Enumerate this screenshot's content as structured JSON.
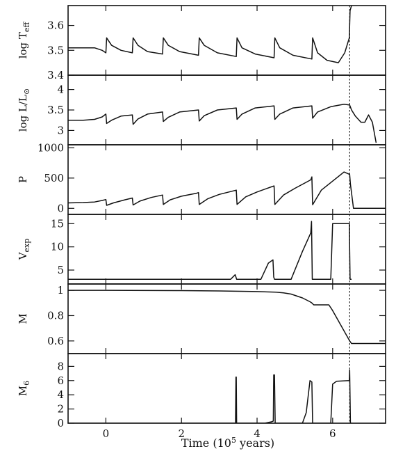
{
  "chart_data": {
    "type": "line",
    "x_range": [
      -1.0,
      7.4
    ],
    "xlabel": "Time (10",
    "xlabel_sup": "5",
    "xlabel_tail": " years)",
    "x_ticks": [
      0,
      2,
      4,
      6
    ],
    "x_tick_labels": [
      "0",
      "2",
      "4",
      "6"
    ],
    "vertical_dashed_line_x": 6.45,
    "panels": [
      {
        "id": "teff",
        "ylabel": "log T",
        "ylabel_sub": "eff",
        "ylim": [
          3.4,
          3.68
        ],
        "y_ticks": [
          3.4,
          3.5,
          3.6
        ],
        "y_tick_labels": [
          "3.4",
          "3.5",
          "3.6"
        ],
        "series": [
          {
            "x": [
              -1.0,
              -0.6,
              -0.3,
              -0.1,
              0.0,
              0.02,
              0.15,
              0.4,
              0.7,
              0.72,
              0.85,
              1.1,
              1.5,
              1.52,
              1.65,
              1.95,
              2.45,
              2.47,
              2.6,
              2.95,
              3.45,
              3.47,
              3.6,
              3.95,
              4.45,
              4.47,
              4.6,
              4.95,
              5.45,
              5.47,
              5.6,
              5.85,
              6.15,
              6.32,
              6.44,
              6.46,
              6.5
            ],
            "y": [
              3.51,
              3.51,
              3.51,
              3.5,
              3.49,
              3.55,
              3.52,
              3.5,
              3.49,
              3.55,
              3.52,
              3.495,
              3.485,
              3.55,
              3.52,
              3.495,
              3.48,
              3.55,
              3.52,
              3.49,
              3.475,
              3.55,
              3.51,
              3.485,
              3.47,
              3.55,
              3.51,
              3.48,
              3.465,
              3.55,
              3.49,
              3.46,
              3.45,
              3.49,
              3.55,
              3.66,
              3.68
            ]
          }
        ]
      },
      {
        "id": "lum",
        "ylabel": "log L/L",
        "ylabel_sub": "⊙",
        "ylim": [
          2.65,
          4.35
        ],
        "y_ticks": [
          3.0,
          3.5,
          4.0
        ],
        "y_tick_labels": [
          "3",
          "3.5",
          "4"
        ],
        "series": [
          {
            "x": [
              -1.0,
              -0.6,
              -0.3,
              -0.1,
              0.0,
              0.02,
              0.15,
              0.4,
              0.7,
              0.72,
              0.85,
              1.1,
              1.5,
              1.52,
              1.65,
              1.95,
              2.45,
              2.47,
              2.6,
              2.95,
              3.45,
              3.47,
              3.6,
              3.95,
              4.45,
              4.47,
              4.6,
              4.95,
              5.45,
              5.47,
              5.6,
              5.95,
              6.3,
              6.45,
              6.5,
              6.6,
              6.75,
              6.85,
              6.95,
              7.05,
              7.15
            ],
            "y": [
              3.25,
              3.25,
              3.27,
              3.33,
              3.4,
              3.17,
              3.25,
              3.35,
              3.38,
              3.15,
              3.28,
              3.4,
              3.45,
              3.22,
              3.32,
              3.45,
              3.5,
              3.23,
              3.36,
              3.5,
              3.55,
              3.27,
              3.4,
              3.55,
              3.6,
              3.27,
              3.4,
              3.55,
              3.6,
              3.3,
              3.45,
              3.58,
              3.64,
              3.62,
              3.5,
              3.35,
              3.2,
              3.2,
              3.38,
              3.2,
              2.7
            ]
          }
        ]
      },
      {
        "id": "period",
        "ylabel": "P",
        "ylabel_sub": "",
        "ylim": [
          -100,
          1050
        ],
        "y_ticks": [
          0,
          500,
          1000
        ],
        "y_tick_labels": [
          "0",
          "500",
          "1000"
        ],
        "series": [
          {
            "x": [
              -1.0,
              -0.6,
              -0.3,
              -0.1,
              0.0,
              0.02,
              0.2,
              0.5,
              0.7,
              0.72,
              0.9,
              1.2,
              1.5,
              1.52,
              1.7,
              2.0,
              2.4,
              2.45,
              2.47,
              2.7,
              3.0,
              3.45,
              3.47,
              3.7,
              4.0,
              4.4,
              4.45,
              4.47,
              4.7,
              5.0,
              5.42,
              5.45,
              5.47,
              5.7,
              6.0,
              6.3,
              6.45,
              6.47,
              6.55,
              7.4
            ],
            "y": [
              90,
              95,
              105,
              130,
              145,
              50,
              90,
              140,
              170,
              55,
              120,
              180,
              220,
              65,
              140,
              200,
              250,
              260,
              65,
              160,
              230,
              300,
              65,
              190,
              270,
              360,
              370,
              65,
              220,
              330,
              470,
              520,
              60,
              300,
              450,
              600,
              560,
              400,
              0,
              0
            ]
          }
        ]
      },
      {
        "id": "vexp",
        "ylabel": "V",
        "ylabel_sub": "exp",
        "ylim": [
          2.0,
          17.0
        ],
        "y_ticks": [
          5,
          10,
          15
        ],
        "y_tick_labels": [
          "5",
          "10",
          "15"
        ],
        "series": [
          {
            "x": [
              -1.0,
              3.2,
              3.3,
              3.42,
              3.44,
              3.46,
              4.1,
              4.3,
              4.42,
              4.44,
              4.46,
              4.55,
              4.9,
              5.2,
              5.42,
              5.44,
              5.46,
              5.6,
              5.95,
              6.0,
              6.35,
              6.44,
              6.46,
              6.5
            ],
            "y": [
              3,
              3,
              3,
              4,
              3.5,
              3,
              3,
              6.5,
              7.2,
              3.5,
              3,
              3,
              3,
              9,
              13,
              15.5,
              3,
              3,
              3,
              15,
              15,
              15,
              3,
              3
            ]
          }
        ]
      },
      {
        "id": "mass",
        "ylabel": "M",
        "ylabel_sub": "",
        "ylim": [
          0.5,
          1.05
        ],
        "y_ticks": [
          0.6,
          0.8,
          1.0
        ],
        "y_tick_labels": [
          "0.6",
          "0.8",
          "1"
        ],
        "series": [
          {
            "x": [
              -1.0,
              0.0,
              2.0,
              3.0,
              4.0,
              4.5,
              4.7,
              4.9,
              5.2,
              5.4,
              5.45,
              5.5,
              5.9,
              6.0,
              6.45,
              6.5,
              7.4
            ],
            "y": [
              1.0,
              1.0,
              0.998,
              0.995,
              0.99,
              0.985,
              0.98,
              0.97,
              0.94,
              0.91,
              0.9,
              0.885,
              0.885,
              0.84,
              0.6,
              0.58,
              0.58
            ]
          }
        ]
      },
      {
        "id": "mdot",
        "ylabel": "M",
        "ylabel_sub": "6",
        "ylim": [
          0,
          9.8
        ],
        "y_ticks": [
          0,
          2,
          4,
          6,
          8
        ],
        "y_tick_labels": [
          "0",
          "2",
          "4",
          "6",
          "8"
        ],
        "series": [
          {
            "x": [
              -1.0,
              3.43,
              3.44,
              3.45,
              3.46,
              4.2,
              4.38,
              4.43,
              4.44,
              4.46,
              4.48,
              5.2,
              5.3,
              5.4,
              5.45,
              5.47,
              5.5,
              5.95,
              6.0,
              6.1,
              6.44,
              6.45,
              6.47,
              6.5
            ],
            "y": [
              0,
              0,
              6.5,
              6.5,
              0,
              0,
              0.2,
              0.3,
              6.8,
              6.8,
              0,
              0,
              1.5,
              6.0,
              5.8,
              0,
              0,
              0,
              5.5,
              5.9,
              6.0,
              7.5,
              0,
              0
            ]
          }
        ]
      }
    ]
  }
}
